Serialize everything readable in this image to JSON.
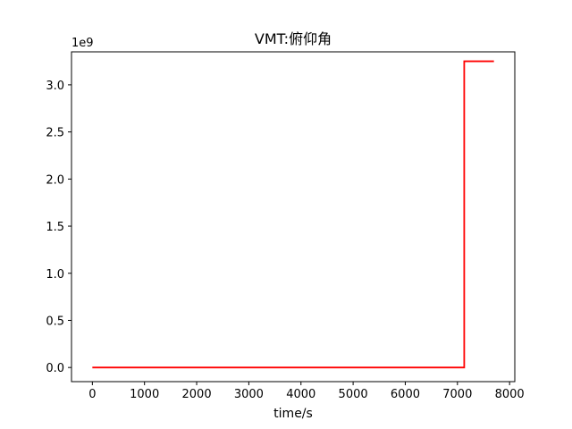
{
  "chart_data": {
    "type": "line",
    "title": "VMT:俯仰角",
    "xlabel": "time/s",
    "ylabel": "",
    "offset_label": "1e9",
    "xlim": [
      -400,
      8100
    ],
    "ylim": [
      -0.15,
      3.35
    ],
    "x_ticks": [
      0,
      1000,
      2000,
      3000,
      4000,
      5000,
      6000,
      7000,
      8000
    ],
    "x_tick_labels": [
      "0",
      "1000",
      "2000",
      "3000",
      "4000",
      "5000",
      "6000",
      "7000",
      "8000"
    ],
    "y_ticks": [
      0.0,
      0.5,
      1.0,
      1.5,
      2.0,
      2.5,
      3.0
    ],
    "y_tick_labels": [
      "0.0",
      "0.5",
      "1.0",
      "1.5",
      "2.0",
      "2.5",
      "3.0"
    ],
    "grid": false,
    "series": [
      {
        "color": "#ff0000",
        "x": [
          0,
          7130,
          7130,
          7700
        ],
        "y": [
          0.0,
          0.0,
          3.25,
          3.25
        ]
      }
    ]
  }
}
